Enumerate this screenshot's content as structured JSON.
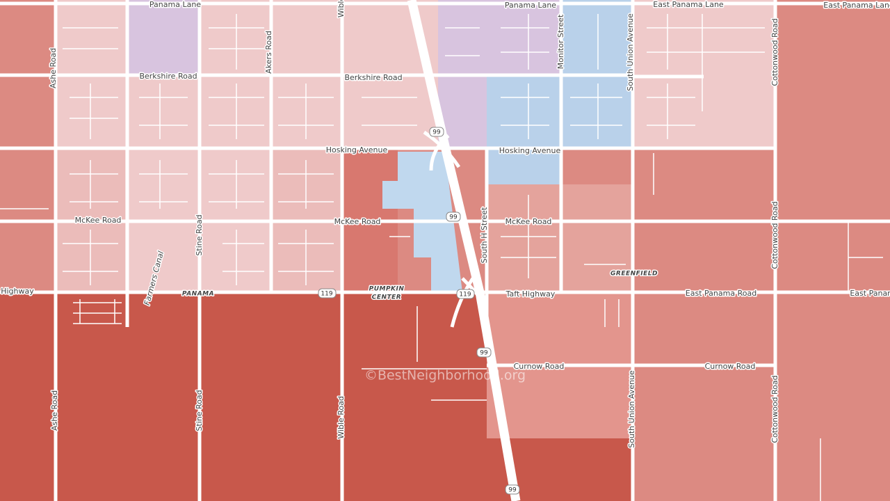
{
  "map": {
    "roads": [
      "Panama Lane",
      "Panama Lane",
      "East Panama Lane",
      "East Panama Lane",
      "Berkshire Road",
      "Berkshire Road",
      "Hosking Avenue",
      "Hosking Avenue",
      "McKee Road",
      "McKee Road",
      "McKee Road",
      "Highway",
      "Taft Highway",
      "East Panama Road",
      "East Panama",
      "Curnow Road",
      "Curnow Road"
    ],
    "vertical_roads": [
      "Ashe Road",
      "Ashe Road",
      "Akers Road",
      "Stine Road",
      "Stine Road",
      "Wible",
      "Wible Road",
      "Monitor Street",
      "South Union Avenue",
      "South Union Avenue",
      "Cottonwood Road",
      "Cottonwood Road",
      "Cottonwood Road",
      "South H Street"
    ],
    "places": [
      "PANAMA",
      "PUMPKIN",
      "CENTER",
      "GREENFIELD"
    ],
    "canal": "Farmers Canal",
    "shields": [
      "99",
      "99",
      "99",
      "99",
      "119",
      "119"
    ],
    "watermark": "©BestNeighborhood.org"
  }
}
